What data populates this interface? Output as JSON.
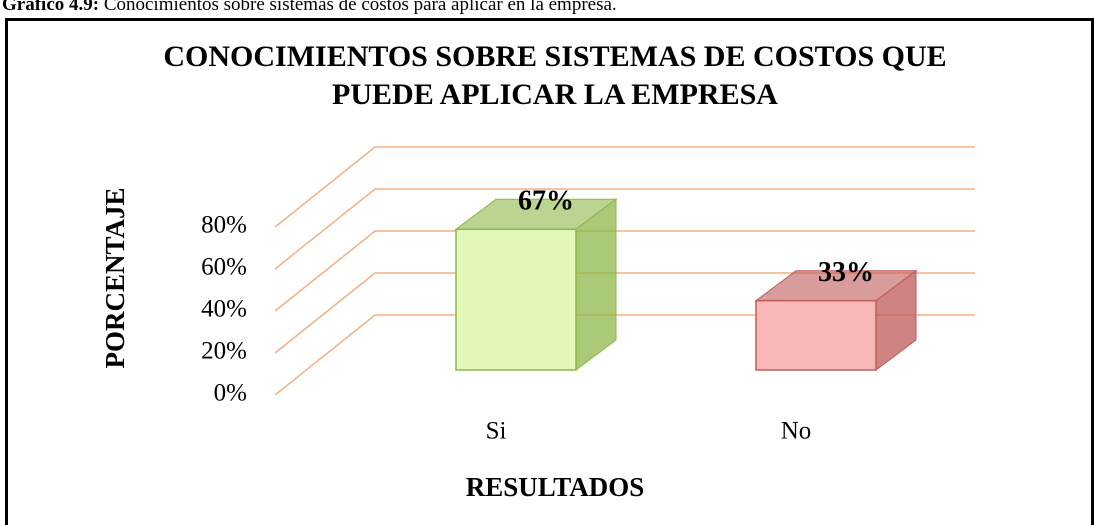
{
  "caption": {
    "label": "Gráfico 4.9:",
    "text": "Conocimientos sobre sistemas de costos para aplicar en la empresa."
  },
  "chart_data": {
    "type": "bar3d",
    "title": "CONOCIMIENTOS SOBRE SISTEMAS DE COSTOS QUE PUEDE APLICAR LA EMPRESA",
    "xlabel": "RESULTADOS",
    "ylabel": "PORCENTAJE",
    "categories": [
      "Si",
      "No"
    ],
    "values": [
      67,
      33
    ],
    "value_labels": [
      "67%",
      "33%"
    ],
    "colors": [
      "#e2f7b8",
      "#f9b8b8"
    ],
    "edge_colors": [
      "#8db84a",
      "#c05a5a"
    ],
    "grid_color": "#f4b183",
    "ylim": [
      0,
      80
    ],
    "yticks": [
      {
        "value": 0,
        "label": "0%"
      },
      {
        "value": 20,
        "label": "20%"
      },
      {
        "value": 40,
        "label": "40%"
      },
      {
        "value": 60,
        "label": "60%"
      },
      {
        "value": 80,
        "label": "80%"
      }
    ],
    "grid": true
  }
}
